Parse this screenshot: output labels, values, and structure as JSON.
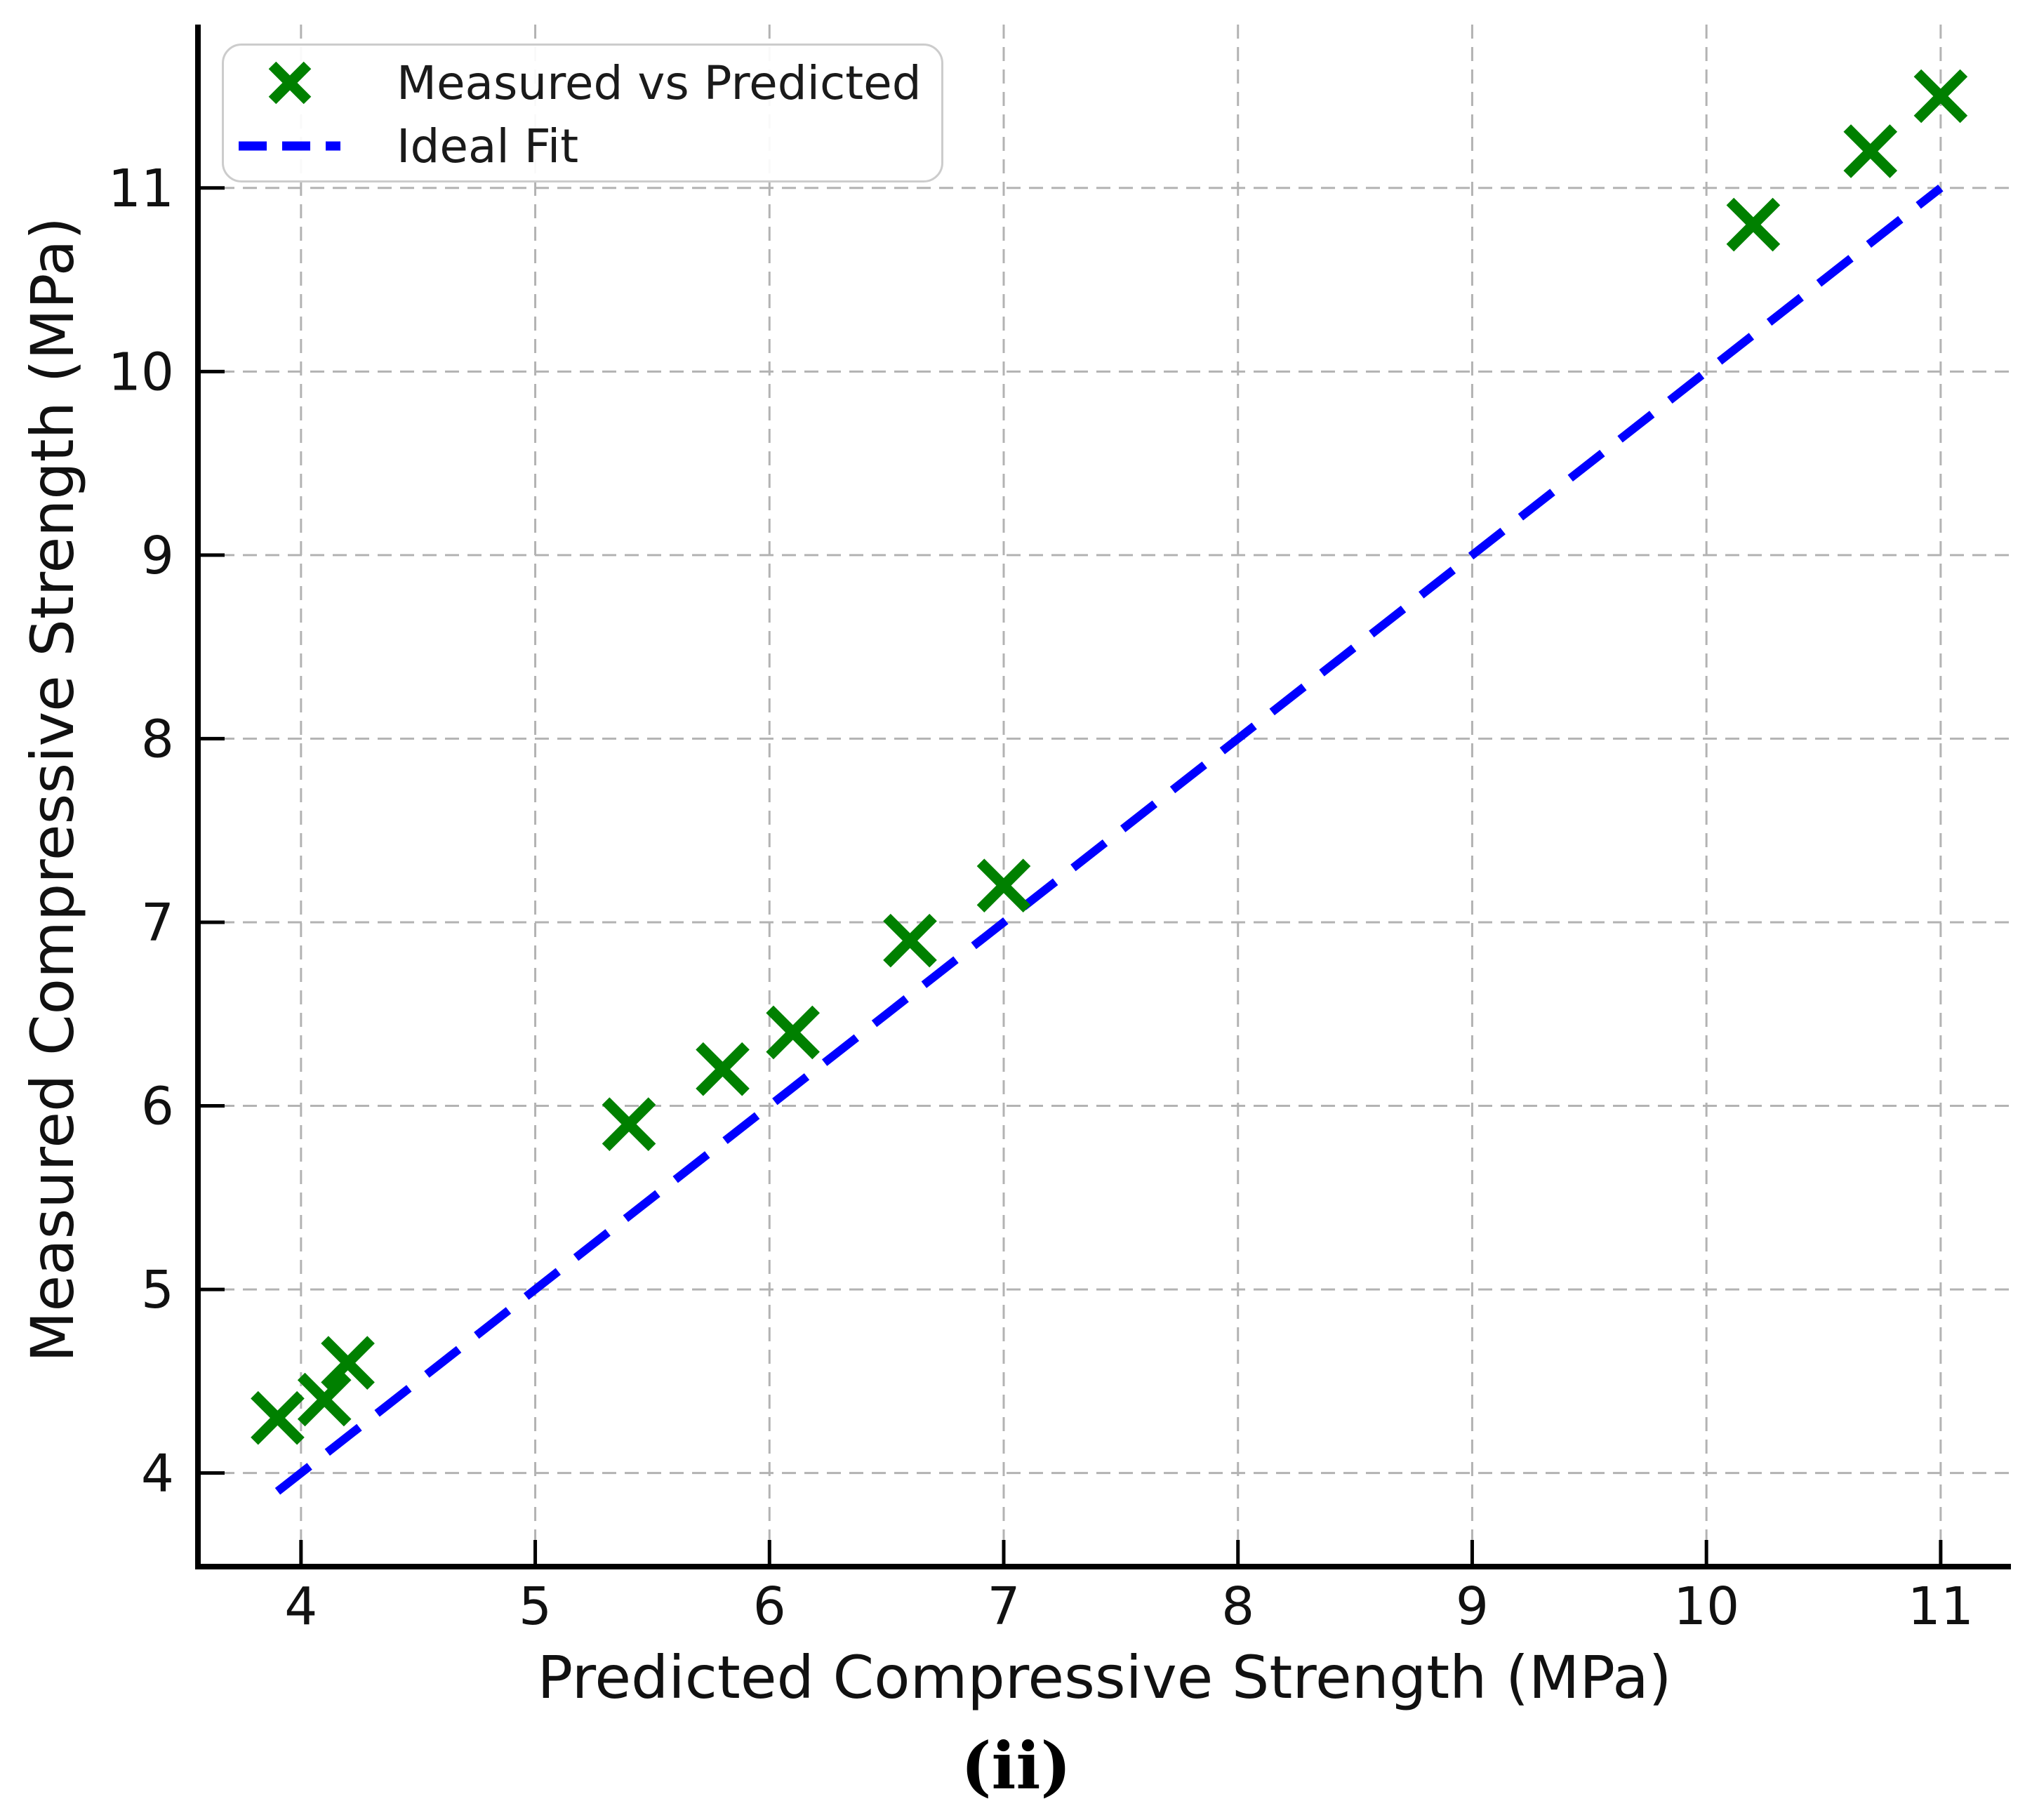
{
  "figure": {
    "caption": "(ii)"
  },
  "colors": {
    "marker_green": "#008000",
    "line_blue": "#0000ff",
    "grid_gray": "#b3b3b3",
    "spine_black": "#000000",
    "legend_border": "#cccccc",
    "background": "#ffffff"
  },
  "chart_data": {
    "type": "scatter",
    "title": "",
    "xlabel": "Predicted Compressive Strength (MPa)",
    "ylabel": "Measured Compressive Strength (MPa)",
    "xlim": [
      3.56,
      11.3
    ],
    "ylim": [
      3.49,
      11.89
    ],
    "x_ticks": [
      4,
      5,
      6,
      7,
      8,
      9,
      10,
      11
    ],
    "y_ticks": [
      4,
      5,
      6,
      7,
      8,
      9,
      10,
      11
    ],
    "grid": true,
    "legend_position": "upper-left",
    "series": [
      {
        "name": "Measured vs Predicted",
        "type": "scatter",
        "marker": "x",
        "color": "#008000",
        "points": [
          [
            3.9,
            4.3
          ],
          [
            4.1,
            4.4
          ],
          [
            4.2,
            4.6
          ],
          [
            5.4,
            5.9
          ],
          [
            5.8,
            6.2
          ],
          [
            6.1,
            6.4
          ],
          [
            6.6,
            6.9
          ],
          [
            7.0,
            7.2
          ],
          [
            10.2,
            10.8
          ],
          [
            10.7,
            11.2
          ],
          [
            11.0,
            11.5
          ]
        ]
      },
      {
        "name": "Ideal Fit",
        "type": "line",
        "style": "dashed",
        "color": "#0000ff",
        "points": [
          [
            3.9,
            3.9
          ],
          [
            11.0,
            11.0
          ]
        ]
      }
    ]
  }
}
